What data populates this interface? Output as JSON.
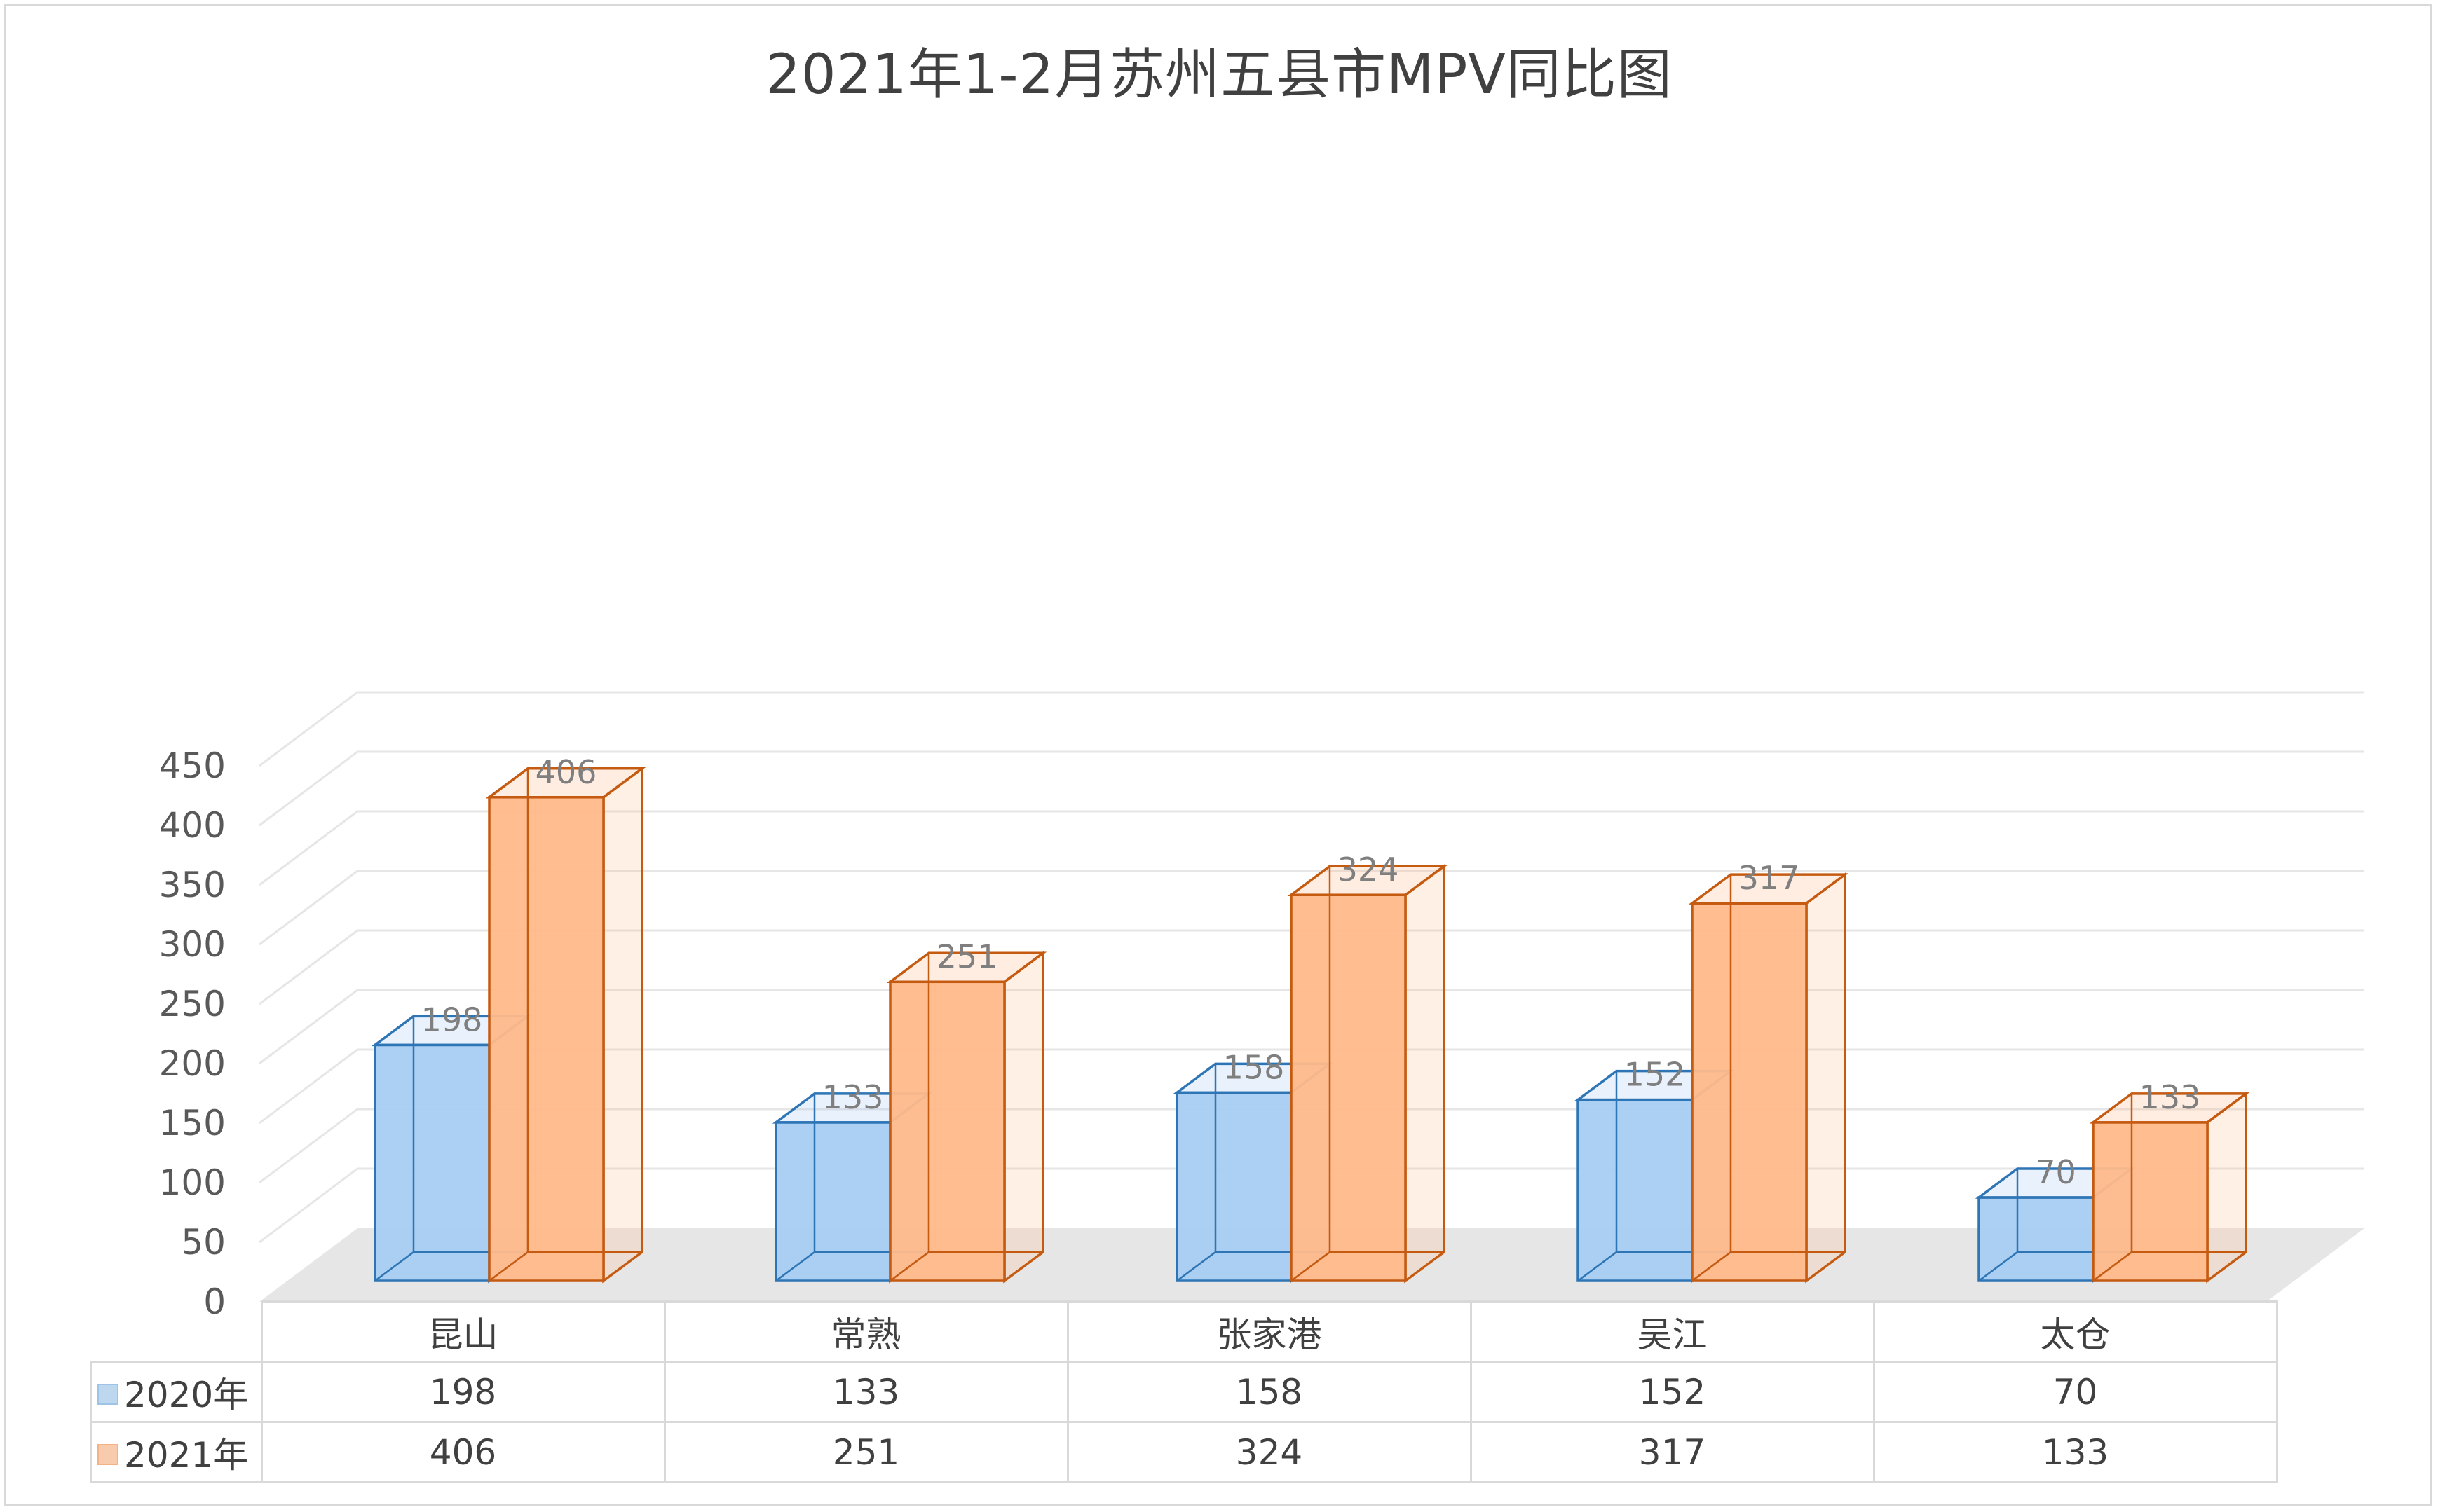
{
  "chart_data": {
    "type": "bar",
    "title": "2021年1-2月苏州五县市MPV同比图",
    "categories": [
      "昆山",
      "常熟",
      "张家港",
      "吴江",
      "太仓"
    ],
    "series": [
      {
        "name": "2020年",
        "values": [
          198,
          133,
          158,
          152,
          70
        ],
        "color_front": "#a6cdf2",
        "color_edge": "#2e75b6",
        "key_fill": "#bdd7ee"
      },
      {
        "name": "2021年",
        "values": [
          406,
          251,
          324,
          317,
          133
        ],
        "color_front": "#ffb98a",
        "color_edge": "#c55a11",
        "key_fill": "#f8cbad"
      }
    ],
    "ylim": [
      0,
      450
    ],
    "yticks": [
      0,
      50,
      100,
      150,
      200,
      250,
      300,
      350,
      400,
      450
    ],
    "grid": true,
    "data_labels": true,
    "data_table": true,
    "style": "3d-clustered-column"
  }
}
